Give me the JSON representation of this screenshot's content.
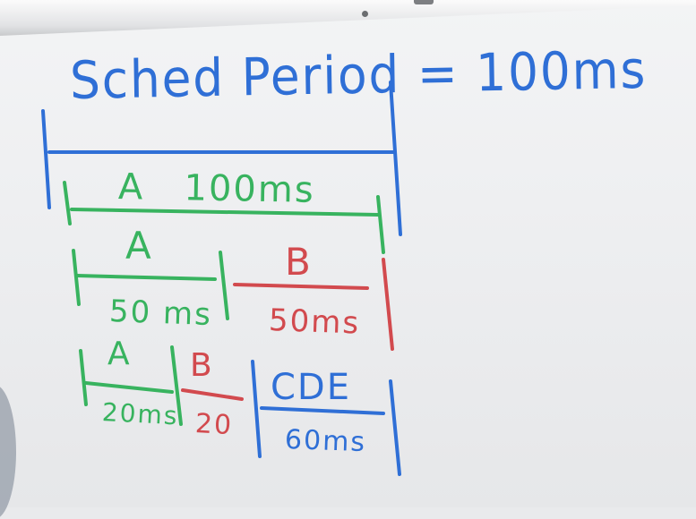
{
  "whiteboard": {
    "title": "Sched Period = 100ms",
    "row1": {
      "label": "A",
      "duration": "100ms"
    },
    "row2": {
      "segments": [
        {
          "label": "A",
          "duration": "50 ms"
        },
        {
          "label": "B",
          "duration": "50ms"
        }
      ]
    },
    "row3": {
      "segments": [
        {
          "label": "A",
          "duration": "20ms"
        },
        {
          "label": "B",
          "duration": "20"
        },
        {
          "label": "CDE",
          "duration": "60ms"
        }
      ]
    }
  },
  "ink_colors": {
    "blue": "#2f6fd6",
    "green": "#38b35f",
    "red": "#d24a4e"
  }
}
